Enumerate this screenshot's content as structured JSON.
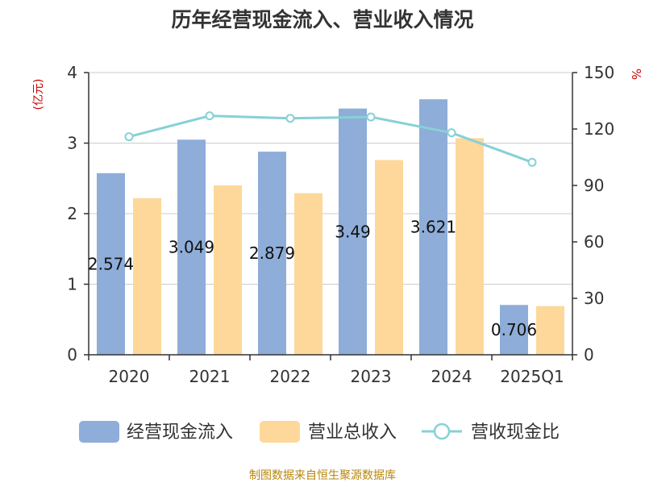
{
  "chart_data": {
    "type": "bar",
    "title": "历年经营现金流入、营业收入情况",
    "y_left_unit": "(亿元)",
    "y_right_unit": "%",
    "y_left_range": [
      0,
      4
    ],
    "y_left_ticks": [
      "0",
      "1",
      "2",
      "3",
      "4"
    ],
    "y_right_range": [
      0,
      150
    ],
    "y_right_ticks": [
      "0",
      "30",
      "60",
      "90",
      "120",
      "150"
    ],
    "categories": [
      "2020",
      "2021",
      "2022",
      "2023",
      "2024",
      "2025Q1"
    ],
    "series": [
      {
        "name": "经营现金流入",
        "type": "bar",
        "axis": "left",
        "color": "#8eadd9",
        "values": [
          2.574,
          3.049,
          2.879,
          3.49,
          3.621,
          0.706
        ],
        "labels": [
          "2.574",
          "3.049",
          "2.879",
          "3.49",
          "3.621",
          "0.706"
        ]
      },
      {
        "name": "营业总收入",
        "type": "bar",
        "axis": "left",
        "color": "#fdd89a",
        "values": [
          2.22,
          2.4,
          2.29,
          2.76,
          3.07,
          0.69
        ]
      },
      {
        "name": "营收现金比",
        "type": "line",
        "axis": "right",
        "color": "#86d1d6",
        "values": [
          115.9,
          127.0,
          125.7,
          126.4,
          118.0,
          102.3
        ]
      }
    ],
    "grid": true,
    "legend_position": "bottom",
    "source_note": "制图数据来自恒生聚源数据库"
  }
}
